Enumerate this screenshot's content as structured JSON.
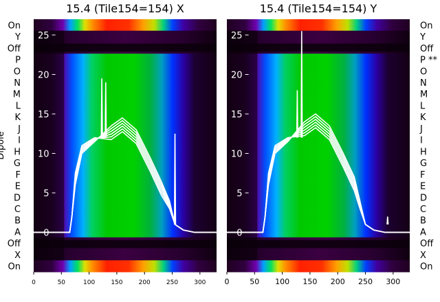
{
  "chart_data": [
    {
      "type": "heatmap",
      "title": "15.4 (Tile154=154) X",
      "ylabel": "Dipole",
      "xlim": [
        0,
        330
      ],
      "ylim": [
        -5,
        27
      ],
      "x_ticks": [
        0,
        50,
        100,
        150,
        200,
        250,
        300
      ],
      "y_ticks": [
        0,
        5,
        10,
        15,
        20,
        25
      ],
      "row_labels": [
        "On",
        "Y",
        "Off",
        "P",
        "O",
        "N",
        "M",
        "L",
        "K",
        "J",
        "I",
        "H",
        "G",
        "F",
        "E",
        "D",
        "C",
        "B",
        "A",
        "Off",
        "X",
        "On"
      ],
      "overlay_lines": {
        "name": "",
        "color": "#ffffff",
        "x_start": 0,
        "x_rise": 65,
        "peak_x": 160,
        "peak_y": 14.5,
        "x_fall": 290,
        "spikes": [
          {
            "x": 123,
            "y": 19.5
          },
          {
            "x": 130,
            "y": 19
          },
          {
            "x": 255,
            "y": 12.5
          }
        ]
      }
    },
    {
      "type": "heatmap",
      "title": "15.4 (Tile154=154) Y",
      "ylabel": "",
      "xlim": [
        0,
        330
      ],
      "ylim": [
        -5,
        27
      ],
      "x_ticks": [
        0,
        50,
        100,
        150,
        200,
        250,
        300
      ],
      "y_ticks": [
        0,
        5,
        10,
        15,
        20,
        25
      ],
      "row_labels": [
        "On",
        "Y",
        "Off",
        "P **",
        "O",
        "N",
        "M",
        "L",
        "K",
        "J",
        "I",
        "H",
        "G",
        "F",
        "E",
        "D",
        "C",
        "B",
        "A",
        "Off",
        "X",
        "On"
      ],
      "overlay_lines": {
        "name": "",
        "color": "#ffffff",
        "x_start": 0,
        "x_rise": 65,
        "peak_x": 160,
        "peak_y": 15,
        "x_fall": 285,
        "spikes": [
          {
            "x": 135,
            "y": 25.5
          },
          {
            "x": 127,
            "y": 18
          },
          {
            "x": 290,
            "y": 2
          }
        ]
      }
    }
  ]
}
